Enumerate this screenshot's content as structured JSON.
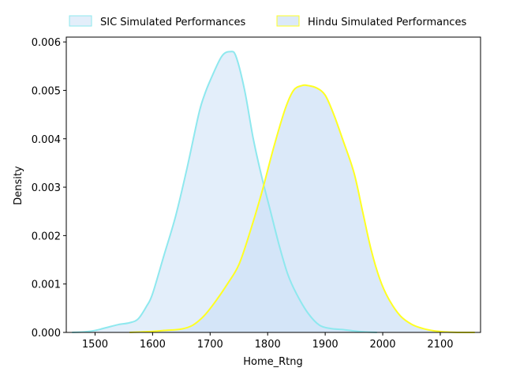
{
  "chart_data": {
    "type": "area",
    "xlabel": "Home_Rtng",
    "ylabel": "Density",
    "xlim": [
      1450,
      2170
    ],
    "ylim": [
      0,
      0.0061
    ],
    "xticks": [
      1500,
      1600,
      1700,
      1800,
      1900,
      2000,
      2100
    ],
    "yticks": [
      0.0,
      0.001,
      0.002,
      0.003,
      0.004,
      0.005,
      0.006
    ],
    "ytick_labels": [
      "0.000",
      "0.001",
      "0.002",
      "0.003",
      "0.004",
      "0.005",
      "0.006"
    ],
    "grid": false,
    "legend_position": "top (above plot, two columns)",
    "series": [
      {
        "name": "SIC Simulated Performances",
        "line_color": "#8ee8ee",
        "fill_color": "#e3eefa",
        "fill_opacity": 1,
        "x": [
          1460,
          1480,
          1500,
          1520,
          1540,
          1560,
          1575,
          1590,
          1600,
          1620,
          1640,
          1660,
          1680,
          1690,
          1700,
          1720,
          1735,
          1745,
          1760,
          1775,
          1790,
          1805,
          1820,
          1835,
          1850,
          1870,
          1890,
          1910,
          1930,
          1950,
          1970,
          1990
        ],
        "y": [
          0.0,
          1e-05,
          4e-05,
          0.0001,
          0.00016,
          0.0002,
          0.00028,
          0.00055,
          0.0008,
          0.0016,
          0.0024,
          0.0034,
          0.0045,
          0.0049,
          0.0052,
          0.0057,
          0.0058,
          0.0057,
          0.005,
          0.004,
          0.0032,
          0.0025,
          0.0018,
          0.0012,
          0.0008,
          0.0004,
          0.00015,
          8e-05,
          6e-05,
          3e-05,
          1e-05,
          0.0
        ]
      },
      {
        "name": "Hindu Simulated Performances",
        "line_color": "#ffff22",
        "fill_color": "#cfe1f7",
        "fill_opacity": 0.75,
        "x": [
          1560,
          1600,
          1620,
          1650,
          1670,
          1690,
          1710,
          1730,
          1750,
          1770,
          1790,
          1810,
          1830,
          1845,
          1860,
          1870,
          1885,
          1900,
          1915,
          1930,
          1950,
          1965,
          1980,
          1995,
          2010,
          2030,
          2050,
          2070,
          2090,
          2110,
          2130,
          2160
        ],
        "y": [
          0.0,
          2e-05,
          4e-05,
          7e-05,
          0.00015,
          0.00035,
          0.00065,
          0.001,
          0.0014,
          0.0021,
          0.0029,
          0.0038,
          0.0046,
          0.005,
          0.0051,
          0.0051,
          0.00505,
          0.0049,
          0.0045,
          0.004,
          0.0033,
          0.0025,
          0.0017,
          0.0011,
          0.0007,
          0.00035,
          0.00017,
          8e-05,
          3e-05,
          1e-05,
          0.0,
          0.0
        ]
      }
    ]
  }
}
